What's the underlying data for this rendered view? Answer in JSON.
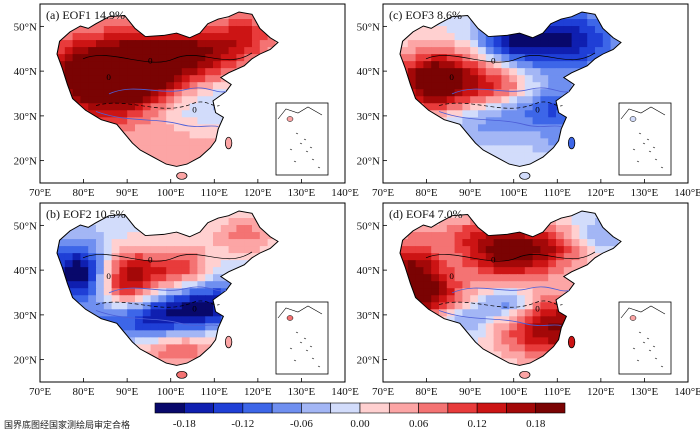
{
  "panels": [
    {
      "label": "(a) EOF1 14.9%",
      "pattern": "eof1"
    },
    {
      "label": "(c) EOF3 8.6%",
      "pattern": "eof3"
    },
    {
      "label": "(b) EOF2 10.5%",
      "pattern": "eof2"
    },
    {
      "label": "(d) EOF4 7.0%",
      "pattern": "eof4"
    }
  ],
  "axes": {
    "x_ticks": [
      "70°E",
      "80°E",
      "90°E",
      "100°E",
      "110°E",
      "120°E",
      "130°E",
      "140°E"
    ],
    "y_ticks": [
      "50°N",
      "40°N",
      "30°N",
      "20°N"
    ],
    "x_range": [
      70,
      140
    ],
    "y_range": [
      15,
      55
    ]
  },
  "contour_label": "0",
  "colorbar": {
    "tick_labels": [
      "-0.18",
      "-0.12",
      "-0.06",
      "0.00",
      "0.06",
      "0.12",
      "0.18"
    ],
    "colors": [
      "#08086b",
      "#0f1fb0",
      "#1f3fd6",
      "#3d66e8",
      "#6f8ff0",
      "#a3b6f5",
      "#d2dcfb",
      "#ffd0d0",
      "#fca5a5",
      "#f47373",
      "#e83b3b",
      "#cc1414",
      "#a30808",
      "#7a0303"
    ]
  },
  "footnote": "国界底图经国家测绘局审定合格"
}
